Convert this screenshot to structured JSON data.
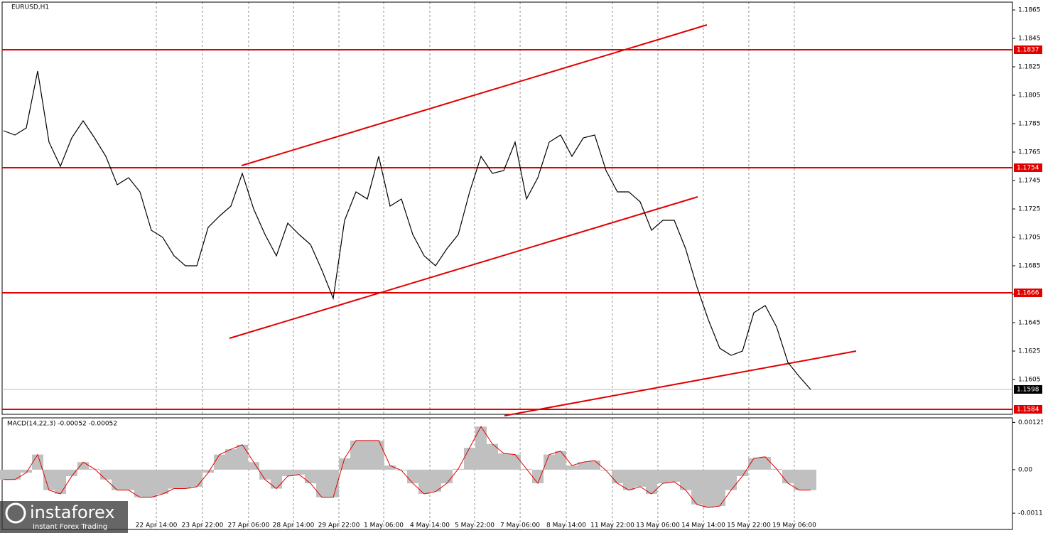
{
  "chart_data": [
    {
      "type": "line",
      "title": "EURUSD,H1",
      "x": [
        0,
        1,
        2,
        3,
        4,
        5,
        6,
        7,
        8,
        9,
        10,
        11,
        12,
        13,
        14,
        15,
        16,
        17,
        18,
        19,
        20,
        21,
        22,
        23,
        24,
        25,
        26,
        27,
        28,
        29,
        30,
        31,
        32,
        33,
        34,
        35,
        36,
        37,
        38,
        39,
        40,
        41,
        42,
        43,
        44,
        45,
        46,
        47,
        48,
        49,
        50,
        51,
        52,
        53,
        54,
        55,
        56,
        57,
        58,
        59,
        60,
        61,
        62,
        63,
        64,
        65,
        66,
        67,
        68,
        69,
        70,
        71
      ],
      "series": [
        {
          "color": "#000000",
          "values": [
            1.178,
            1.1777,
            1.1782,
            1.1822,
            1.1772,
            1.1755,
            1.1775,
            1.1787,
            1.1775,
            1.1762,
            1.1742,
            1.1747,
            1.1737,
            1.171,
            1.1705,
            1.1692,
            1.1685,
            1.1685,
            1.1712,
            1.172,
            1.1727,
            1.175,
            1.1725,
            1.1707,
            1.1692,
            1.1715,
            1.1707,
            1.17,
            1.1682,
            1.1662,
            1.1717,
            1.1737,
            1.1732,
            1.1762,
            1.1727,
            1.1732,
            1.1707,
            1.1692,
            1.1685,
            1.1697,
            1.1707,
            1.1737,
            1.1762,
            1.175,
            1.1752,
            1.1772,
            1.1732,
            1.1747,
            1.1772,
            1.1777,
            1.1762,
            1.1775,
            1.1777,
            1.1752,
            1.1737,
            1.1737,
            1.173,
            1.171,
            1.1717,
            1.1717,
            1.1697,
            1.167,
            1.1647,
            1.1627,
            1.1622,
            1.1625,
            1.1652,
            1.1657,
            1.1642,
            1.1617,
            1.1607,
            1.1598
          ]
        }
      ],
      "xlim": [
        -0.125,
        88.75
      ],
      "ylim": [
        1.15805,
        1.18705
      ],
      "yticks": [
        1.1865,
        1.1845,
        1.1825,
        1.1805,
        1.1785,
        1.1765,
        1.1745,
        1.1725,
        1.1705,
        1.1685,
        1.1665,
        1.1645,
        1.1625,
        1.1605
      ],
      "xticks": [
        {
          "value": 13.44,
          "label": "22 Apr 14:00"
        },
        {
          "value": 17.5,
          "label": "23 Apr 22:00"
        },
        {
          "value": 21.56,
          "label": "27 Apr 06:00"
        },
        {
          "value": 25.5,
          "label": "28 Apr 14:00"
        },
        {
          "value": 29.5,
          "label": "29 Apr 22:00"
        },
        {
          "value": 33.44,
          "label": "1 May 06:00"
        },
        {
          "value": 37.5,
          "label": "4 May 14:00"
        },
        {
          "value": 41.44,
          "label": "5 May 22:00"
        },
        {
          "value": 45.44,
          "label": "7 May 06:00"
        },
        {
          "value": 49.5,
          "label": "8 May 14:00"
        },
        {
          "value": 53.56,
          "label": "11 May 22:00"
        },
        {
          "value": 57.56,
          "label": "13 May 06:00"
        },
        {
          "value": 61.56,
          "label": "14 May 14:00"
        },
        {
          "value": 65.56,
          "label": "15 May 22:00"
        },
        {
          "value": 69.56,
          "label": "19 May 06:00"
        }
      ],
      "levels": [
        1.1837,
        1.1754,
        1.1666,
        1.1584
      ],
      "level_color": "#e00000",
      "current_price": 1.1598,
      "trendlines": [
        [
          [
            20.94,
            1.17555
          ],
          [
            61.875,
            1.18545
          ]
        ],
        [
          [
            19.875,
            1.1634
          ],
          [
            61.06,
            1.17335
          ]
        ],
        [
          [
            44.06,
            1.15795
          ],
          [
            75,
            1.1625
          ]
        ]
      ],
      "watermark": {
        "brand": "instaforex",
        "tagline": "Instant Forex Trading"
      }
    },
    {
      "type": "bar",
      "title": "MACD(14,22,3) -0.00052 -0.00052",
      "color": "#c0c0c0",
      "line_color": "#e00000",
      "values": [
        -0.00026,
        -0.00026,
        -8e-05,
        0.0004,
        -0.00054,
        -0.00064,
        -0.00017,
        0.0002,
        2e-05,
        -0.00026,
        -0.00054,
        -0.00054,
        -0.00073,
        -0.00073,
        -0.00064,
        -0.0005,
        -0.0005,
        -0.00045,
        -8e-05,
        0.0004,
        0.00054,
        0.00066,
        0.0002,
        -0.00026,
        -0.0005,
        -0.00017,
        -0.00013,
        -0.00036,
        -0.00073,
        -0.00073,
        0.0003,
        0.00077,
        0.00077,
        0.00077,
        0.00011,
        -2e-05,
        -0.00036,
        -0.00064,
        -0.00058,
        -0.00036,
        2e-05,
        0.00058,
        0.00114,
        0.00068,
        0.00043,
        0.0004,
        2e-05,
        -0.00036,
        0.0004,
        0.00049,
        0.00011,
        0.0002,
        0.00024,
        -2e-05,
        -0.00036,
        -0.00054,
        -0.00045,
        -0.00064,
        -0.00036,
        -0.00032,
        -0.00054,
        -0.00092,
        -0.001,
        -0.00096,
        -0.00054,
        -0.00017,
        0.0003,
        0.00034,
        2e-05,
        -0.00036,
        -0.00054,
        -0.00054
      ],
      "ylim": [
        -0.00158,
        0.00137
      ],
      "yticks": [
        0.00125,
        {
          "value": 0,
          "label": "0.00"
        },
        -0.00115
      ]
    }
  ]
}
